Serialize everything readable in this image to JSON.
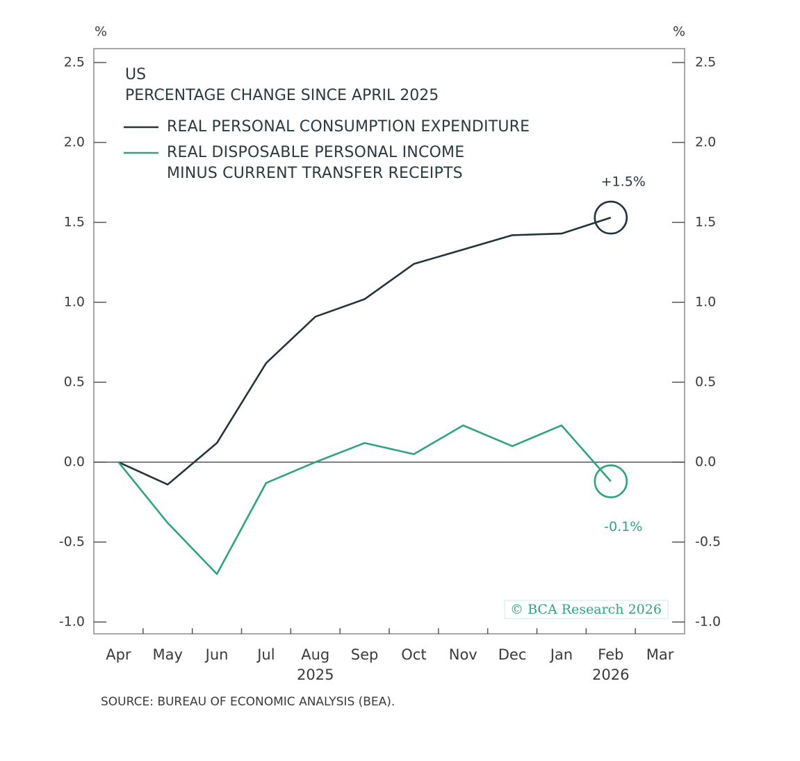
{
  "chart_data": {
    "type": "line",
    "title": "US",
    "subtitle": "PERCENTAGE CHANGE SINCE APRIL 2025",
    "y_label": "%",
    "y2_label": "%",
    "categories": [
      "Apr",
      "May",
      "Jun",
      "Jul",
      "Aug",
      "Sep",
      "Oct",
      "Nov",
      "Dec",
      "Jan",
      "Feb",
      "Mar"
    ],
    "year_labels": [
      {
        "month": "Aug",
        "label": "2025"
      },
      {
        "month": "Feb",
        "label": "2026"
      }
    ],
    "series": [
      {
        "name": "REAL PERSONAL CONSUMPTION EXPENDITURE",
        "color": "#22353d",
        "values": [
          0,
          -0.14,
          0.12,
          0.62,
          0.91,
          1.02,
          1.24,
          1.33,
          1.42,
          1.43,
          1.53,
          null
        ],
        "end_label": "+1.5%"
      },
      {
        "name": "REAL DISPOSABLE PERSONAL INCOME\nMINUS CURRENT TRANSFER RECEIPTS",
        "color": "#2fa37f",
        "values": [
          0,
          -0.38,
          -0.7,
          -0.13,
          0.0,
          0.12,
          0.05,
          0.23,
          0.1,
          0.23,
          -0.12,
          null
        ],
        "end_label": "-0.1%"
      }
    ],
    "ylim": [
      -1.074,
      2.587
    ],
    "yticks": [
      {
        "value": -1,
        "label": "-1.0"
      },
      -0.5,
      {
        "value": 0,
        "label": "0.0"
      },
      0.5,
      {
        "value": 1,
        "label": "1.0"
      },
      1.5,
      {
        "value": 2,
        "label": "2.0"
      },
      2.5
    ],
    "y2lim": [
      -1.074,
      2.587
    ],
    "y2ticks": [
      {
        "value": -1,
        "label": "-1.0"
      },
      -0.5,
      {
        "value": 0,
        "label": "0.0"
      },
      0.5,
      {
        "value": 1,
        "label": "1.0"
      },
      1.5,
      {
        "value": 2,
        "label": "2.0"
      },
      2.5
    ],
    "watermark": "© BCA Research 2026",
    "source": "SOURCE: BUREAU OF ECONOMIC ANALYSIS (BEA)."
  }
}
